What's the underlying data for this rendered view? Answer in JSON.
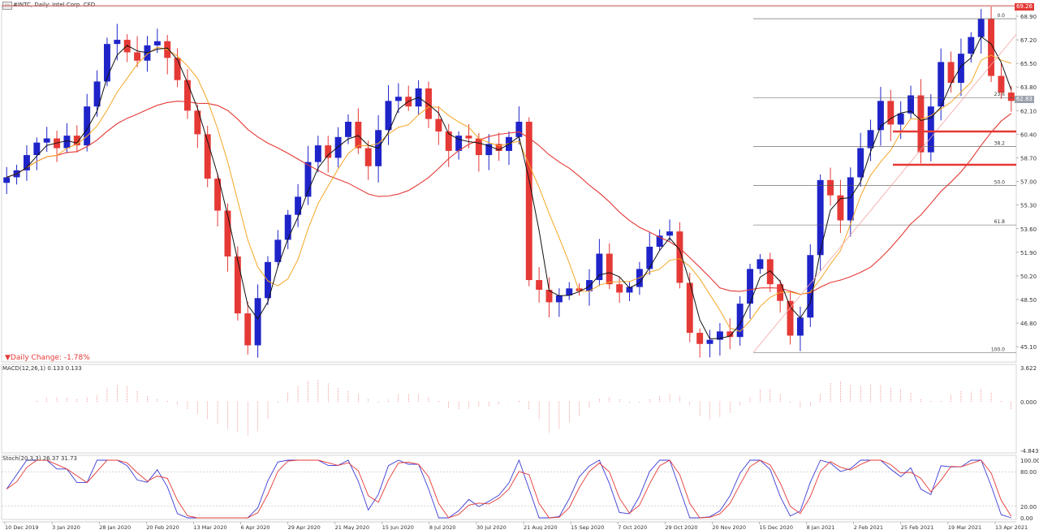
{
  "window": {
    "title": "#INTC, Daily: Intel Corp. CFD",
    "menu_icon": "chart-window-icon"
  },
  "daily_change": "Daily Change: -1.78%",
  "price_tags": {
    "high": "69.26",
    "current": "62.83"
  },
  "macd_label": "MACD(12,26,1) 0.133 0.133",
  "stoch_label": "Stoch(20,3,3) 26.37 31.73",
  "chart_data": {
    "type": "candlestick",
    "title": "#INTC, Daily: Intel Corp. CFD",
    "x_labels": [
      "10 Dec 2019",
      "3 Jan 2020",
      "28 Jan 2020",
      "20 Feb 2020",
      "13 Mar 2020",
      "6 Apr 2020",
      "29 Apr 2020",
      "21 May 2020",
      "15 Jun 2020",
      "8 Jul 2020",
      "30 Jul 2020",
      "21 Aug 2020",
      "15 Sep 2020",
      "7 Oct 2020",
      "29 Oct 2020",
      "20 Nov 2020",
      "15 Dec 2020",
      "8 Jan 2021",
      "2 Feb 2021",
      "25 Feb 2021",
      "19 Mar 2021",
      "13 Apr 2021"
    ],
    "y_ticks": [
      "68.90",
      "67.20",
      "65.50",
      "63.80",
      "62.10",
      "60.40",
      "58.70",
      "57.00",
      "55.30",
      "53.60",
      "51.90",
      "50.20",
      "48.50",
      "46.80",
      "45.10"
    ],
    "ylim": [
      44.0,
      69.6
    ],
    "closes": [
      57.3,
      57.8,
      58.9,
      59.8,
      60.1,
      59.4,
      60.3,
      59.6,
      62.4,
      64.2,
      66.9,
      67.2,
      66.3,
      65.7,
      66.8,
      67.1,
      65.9,
      64.3,
      62.1,
      60.4,
      57.2,
      54.9,
      51.6,
      47.5,
      45.2,
      48.6,
      51.2,
      52.8,
      54.6,
      55.9,
      58.4,
      59.6,
      58.7,
      60.2,
      61.3,
      59.4,
      58.1,
      60.7,
      62.8,
      63.1,
      62.4,
      63.7,
      61.5,
      60.6,
      59.2,
      60.3,
      60.1,
      58.9,
      59.7,
      59.2,
      60.2,
      61.3,
      49.9,
      49.2,
      48.3,
      48.8,
      49.3,
      49.1,
      49.9,
      51.8,
      49.6,
      49.0,
      49.4,
      50.7,
      52.3,
      53.1,
      53.4,
      49.7,
      46.1,
      45.3,
      45.6,
      46.2,
      45.8,
      48.2,
      50.7,
      51.4,
      49.6,
      48.4,
      45.9,
      47.2,
      51.7,
      57.1,
      56.0,
      54.2,
      57.3,
      59.4,
      60.7,
      62.8,
      61.1,
      61.9,
      63.2,
      59.1,
      62.4,
      65.6,
      64.1,
      66.2,
      67.4,
      68.7,
      64.6,
      63.4,
      62.8
    ],
    "fibonacci": [
      {
        "level": "0.0",
        "price": 68.72
      },
      {
        "level": "23.6",
        "price": 63.04
      },
      {
        "level": "38.2",
        "price": 59.53
      },
      {
        "level": "50.0",
        "price": 56.7
      },
      {
        "level": "61.8",
        "price": 53.87
      },
      {
        "level": "100.0",
        "price": 44.68
      }
    ],
    "support_levels": [
      60.6,
      58.2
    ],
    "macd_ticks": [
      "3.622",
      "0.000",
      "-4.843"
    ],
    "stoch_ticks": [
      "100.00",
      "80.00",
      "20.00",
      "0.00"
    ],
    "legend_colors": {
      "up": "#1e24c8",
      "down": "#e53935",
      "ma_fast": "#111111",
      "ma_mid": "#f5a623",
      "ma_slow": "#e53935",
      "fib": "#555555",
      "trend": "#f4a3a3",
      "stoch_main": "#3b3bd6",
      "stoch_signal": "#e53935"
    }
  }
}
